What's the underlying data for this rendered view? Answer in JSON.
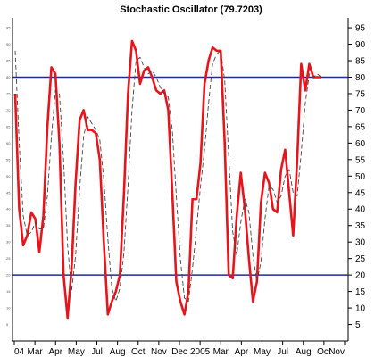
{
  "chart_data": {
    "type": "line",
    "title": "Stochastic Oscillator (79.7203)",
    "xlabel": "",
    "ylabel": "",
    "x_tick_labels": [
      "04",
      "Mar",
      "Apr",
      "May",
      "Jul",
      "Aug",
      "Oct",
      "Nov",
      "Dec",
      "2005",
      "Mar",
      "Apr",
      "May",
      "Jul",
      "Aug",
      "Oct",
      "Nov"
    ],
    "y_tick_labels": [
      "5",
      "10",
      "15",
      "20",
      "25",
      "30",
      "35",
      "40",
      "45",
      "50",
      "55",
      "60",
      "65",
      "70",
      "75",
      "80",
      "85",
      "90",
      "95"
    ],
    "ylim": [
      0,
      98
    ],
    "reference_lines": [
      {
        "value": 80,
        "color": "#1f2d8f"
      },
      {
        "value": 20,
        "color": "#1f2d8f"
      }
    ],
    "grid": false,
    "series": [
      {
        "color": "#e8141b",
        "style": "solid",
        "values": [
          75,
          40,
          29,
          32,
          39,
          37,
          27,
          38,
          65,
          83,
          81,
          60,
          20,
          7,
          22,
          48,
          67,
          70,
          64,
          64,
          63,
          55,
          30,
          8,
          12,
          15,
          20,
          45,
          75,
          91,
          88,
          78,
          82,
          83,
          80,
          76,
          75,
          76,
          70,
          45,
          18,
          12,
          8,
          15,
          43,
          43,
          54,
          78,
          85,
          89,
          88,
          88,
          60,
          20,
          19,
          38,
          51,
          40,
          25,
          12,
          18,
          42,
          51,
          48,
          40,
          39,
          52,
          58,
          45,
          32,
          55,
          84,
          76,
          84,
          80,
          80,
          80
        ]
      },
      {
        "color": "#444444",
        "style": "dashed",
        "values": [
          88,
          60,
          38,
          32,
          33,
          36,
          34,
          34,
          44,
          62,
          76,
          75,
          55,
          29,
          15,
          26,
          46,
          62,
          68,
          66,
          64,
          61,
          49,
          31,
          16,
          12,
          16,
          27,
          47,
          70,
          85,
          86,
          83,
          81,
          82,
          80,
          77,
          75,
          74,
          64,
          44,
          25,
          13,
          12,
          22,
          34,
          47,
          58,
          72,
          84,
          87,
          88,
          79,
          56,
          33,
          26,
          36,
          43,
          39,
          26,
          18,
          24,
          37,
          47,
          46,
          42,
          44,
          50,
          52,
          45,
          44,
          57,
          72,
          81,
          80,
          81,
          80
        ]
      }
    ]
  }
}
